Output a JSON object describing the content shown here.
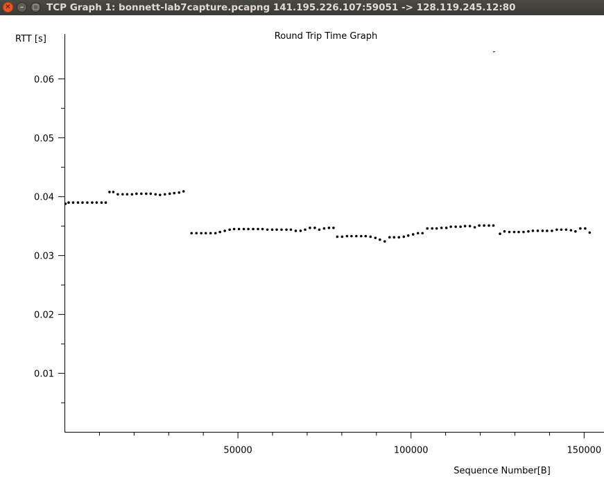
{
  "window": {
    "title": "TCP Graph 1: bonnett-lab7capture.pcapng 141.195.226.107:59051 -> 128.119.245.12:80",
    "buttons": [
      "close-icon",
      "minimize-icon",
      "maximize-icon"
    ]
  },
  "chart_data": {
    "type": "scatter",
    "title": "Round Trip Time Graph",
    "xlabel": "Sequence Number[B]",
    "ylabel": "RTT [s]",
    "xlim": [
      0,
      153000
    ],
    "ylim": [
      0,
      0.0685
    ],
    "x_ticks_labeled": [
      50000,
      100000,
      150000
    ],
    "x_tick_labels": [
      "50000",
      "100000",
      "150000"
    ],
    "y_ticks_labeled": [
      0.01,
      0.02,
      0.03,
      0.04,
      0.05,
      0.06
    ],
    "y_tick_labels": [
      "0.01",
      "0.02",
      "0.03",
      "0.04",
      "0.05",
      "0.06"
    ],
    "grid": false,
    "marker_color": "#000000",
    "outlier": {
      "x": 124000,
      "y": 0.0646
    },
    "series": [
      {
        "points": [
          [
            200,
            0.0388
          ],
          [
            1100,
            0.039
          ],
          [
            2400,
            0.039
          ],
          [
            3800,
            0.039
          ],
          [
            5100,
            0.039
          ],
          [
            6500,
            0.039
          ],
          [
            7900,
            0.039
          ],
          [
            9200,
            0.039
          ],
          [
            10600,
            0.039
          ],
          [
            11800,
            0.039
          ],
          [
            12900,
            0.0408
          ],
          [
            14000,
            0.0408
          ],
          [
            15300,
            0.0404
          ],
          [
            16700,
            0.0404
          ],
          [
            18000,
            0.0404
          ],
          [
            19400,
            0.0404
          ],
          [
            20700,
            0.0405
          ],
          [
            22100,
            0.0405
          ],
          [
            23500,
            0.0405
          ],
          [
            24800,
            0.0405
          ],
          [
            26200,
            0.0404
          ],
          [
            27500,
            0.0403
          ],
          [
            28900,
            0.0404
          ],
          [
            30300,
            0.0405
          ],
          [
            31600,
            0.0406
          ],
          [
            33000,
            0.0407
          ],
          [
            34300,
            0.0409
          ],
          [
            36600,
            0.0338
          ],
          [
            38000,
            0.0338
          ],
          [
            39400,
            0.0338
          ],
          [
            40700,
            0.0338
          ],
          [
            42100,
            0.0338
          ],
          [
            43500,
            0.0338
          ],
          [
            44800,
            0.034
          ],
          [
            46200,
            0.0342
          ],
          [
            47600,
            0.0344
          ],
          [
            48900,
            0.0345
          ],
          [
            50300,
            0.0345
          ],
          [
            51700,
            0.0345
          ],
          [
            53000,
            0.0345
          ],
          [
            54400,
            0.0345
          ],
          [
            55800,
            0.0345
          ],
          [
            57100,
            0.0345
          ],
          [
            58500,
            0.0344
          ],
          [
            59900,
            0.0344
          ],
          [
            61200,
            0.0344
          ],
          [
            62600,
            0.0344
          ],
          [
            64000,
            0.0344
          ],
          [
            65300,
            0.0344
          ],
          [
            66700,
            0.0342
          ],
          [
            68100,
            0.0342
          ],
          [
            69400,
            0.0344
          ],
          [
            70800,
            0.0347
          ],
          [
            72200,
            0.0347
          ],
          [
            73500,
            0.0344
          ],
          [
            74900,
            0.0346
          ],
          [
            76300,
            0.0347
          ],
          [
            77600,
            0.0347
          ],
          [
            78700,
            0.0332
          ],
          [
            80100,
            0.0332
          ],
          [
            81500,
            0.0333
          ],
          [
            82800,
            0.0333
          ],
          [
            84200,
            0.0333
          ],
          [
            85600,
            0.0333
          ],
          [
            86900,
            0.0333
          ],
          [
            88300,
            0.0332
          ],
          [
            89700,
            0.033
          ],
          [
            91000,
            0.0327
          ],
          [
            92400,
            0.0324
          ],
          [
            93800,
            0.0331
          ],
          [
            95100,
            0.0331
          ],
          [
            96500,
            0.0331
          ],
          [
            97900,
            0.0332
          ],
          [
            99200,
            0.0334
          ],
          [
            100600,
            0.0336
          ],
          [
            102000,
            0.0338
          ],
          [
            103300,
            0.0338
          ],
          [
            104700,
            0.0346
          ],
          [
            106100,
            0.0346
          ],
          [
            107400,
            0.0346
          ],
          [
            108800,
            0.0347
          ],
          [
            110200,
            0.0347
          ],
          [
            111500,
            0.0349
          ],
          [
            112900,
            0.0349
          ],
          [
            114300,
            0.0349
          ],
          [
            115600,
            0.035
          ],
          [
            117000,
            0.035
          ],
          [
            118400,
            0.0348
          ],
          [
            119700,
            0.0351
          ],
          [
            121100,
            0.0351
          ],
          [
            122500,
            0.0351
          ],
          [
            123800,
            0.0351
          ],
          [
            125700,
            0.0337
          ],
          [
            127000,
            0.0341
          ],
          [
            128400,
            0.034
          ],
          [
            129800,
            0.034
          ],
          [
            131100,
            0.034
          ],
          [
            132500,
            0.034
          ],
          [
            133900,
            0.0341
          ],
          [
            135200,
            0.0342
          ],
          [
            136600,
            0.0342
          ],
          [
            138000,
            0.0342
          ],
          [
            139300,
            0.0342
          ],
          [
            140700,
            0.0342
          ],
          [
            142100,
            0.0344
          ],
          [
            143400,
            0.0344
          ],
          [
            144800,
            0.0344
          ],
          [
            146200,
            0.0343
          ],
          [
            147500,
            0.0341
          ],
          [
            148900,
            0.0346
          ],
          [
            150300,
            0.0346
          ],
          [
            151600,
            0.0339
          ]
        ]
      }
    ]
  }
}
